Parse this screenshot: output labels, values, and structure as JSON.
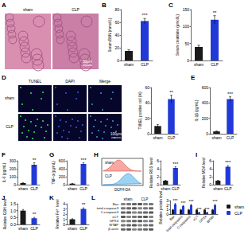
{
  "chart_data": [
    {
      "type": "bar",
      "title": "B",
      "categories": [
        "sham",
        "CLP"
      ],
      "values": [
        15,
        62
      ],
      "errors": [
        2,
        4
      ],
      "colors": [
        "#1a1a1a",
        "#2139d6"
      ],
      "ylabel": "Serum BUN (mmol/L)",
      "ylim": [
        0,
        80
      ],
      "yticks": [
        0,
        20,
        40,
        60,
        80
      ],
      "annotation": "***"
    },
    {
      "type": "bar",
      "title": "C",
      "categories": [
        "sham",
        "CLP"
      ],
      "values": [
        40,
        120
      ],
      "errors": [
        5,
        12
      ],
      "colors": [
        "#1a1a1a",
        "#2139d6"
      ],
      "ylabel": "Serum creatinine (μmol/L)",
      "ylim": [
        0,
        150
      ],
      "yticks": [
        0,
        50,
        100,
        150
      ],
      "annotation": "**"
    },
    {
      "type": "bar",
      "categories": [
        "sham",
        "CLP"
      ],
      "values": [
        10,
        45
      ],
      "errors": [
        2,
        5
      ],
      "colors": [
        "#1a1a1a",
        "#2139d6"
      ],
      "ylabel": "TUNEL positive cell (%)",
      "ylim": [
        0,
        60
      ],
      "yticks": [
        0,
        20,
        40,
        60
      ],
      "annotation": "**"
    },
    {
      "type": "bar",
      "title": "E",
      "categories": [
        "sham",
        "CLP"
      ],
      "values": [
        30,
        450
      ],
      "errors": [
        5,
        30
      ],
      "colors": [
        "#1a1a1a",
        "#2139d6"
      ],
      "ylabel": "IL-1β (pg/mL)",
      "ylim": [
        0,
        600
      ],
      "yticks": [
        0,
        200,
        400,
        600
      ],
      "annotation": "***"
    },
    {
      "type": "bar",
      "title": "F",
      "categories": [
        "sham",
        "CLP"
      ],
      "values": [
        20,
        250
      ],
      "errors": [
        4,
        25
      ],
      "colors": [
        "#1a1a1a",
        "#2139d6"
      ],
      "ylabel": "IL-6 (pg/mL)",
      "ylim": [
        0,
        300
      ],
      "yticks": [
        0,
        100,
        200,
        300
      ],
      "annotation": "**"
    },
    {
      "type": "bar",
      "title": "G",
      "categories": [
        "sham",
        "CLP"
      ],
      "values": [
        25,
        520
      ],
      "errors": [
        5,
        30
      ],
      "colors": [
        "#1a1a1a",
        "#2139d6"
      ],
      "ylabel": "TNF-α (pg/mL)",
      "ylim": [
        0,
        600
      ],
      "yticks": [
        0,
        200,
        400,
        600
      ],
      "annotation": "***"
    },
    {
      "type": "bar",
      "categories": [
        "sham",
        "CLP"
      ],
      "values": [
        1,
        4.2
      ],
      "errors": [
        0.1,
        0.3
      ],
      "colors": [
        "#1a1a1a",
        "#2139d6"
      ],
      "ylabel": "Relative ROS level",
      "ylim": [
        0,
        6
      ],
      "yticks": [
        0,
        2,
        4,
        6
      ],
      "annotation": "***"
    },
    {
      "type": "bar",
      "title": "I",
      "categories": [
        "sham",
        "CLP"
      ],
      "values": [
        1,
        4.5
      ],
      "errors": [
        0.1,
        0.3
      ],
      "colors": [
        "#1a1a1a",
        "#2139d6"
      ],
      "ylabel": "Relative MDA level",
      "ylim": [
        0,
        6
      ],
      "yticks": [
        0,
        2,
        4,
        6
      ],
      "annotation": "***"
    },
    {
      "type": "bar",
      "title": "J",
      "categories": [
        "sham",
        "CLP"
      ],
      "values": [
        1,
        0.45
      ],
      "errors": [
        0.08,
        0.06
      ],
      "colors": [
        "#1a1a1a",
        "#2139d6"
      ],
      "ylabel": "Relative GSH level",
      "ylim": [
        0,
        1.5
      ],
      "yticks": [
        {
          "value": 0,
          "label": "0.0"
        },
        {
          "value": 0.5,
          "label": "0.5"
        },
        {
          "value": 1,
          "label": "1.0"
        },
        {
          "value": 1.5,
          "label": "1.5"
        }
      ],
      "annotation": "**"
    },
    {
      "type": "bar",
      "title": "K",
      "categories": [
        "sham",
        "CLP"
      ],
      "values": [
        1,
        3
      ],
      "errors": [
        0.1,
        0.2
      ],
      "colors": [
        "#1a1a1a",
        "#2139d6"
      ],
      "ylabel": "Relative Fe²⁺ level",
      "ylim": [
        0,
        4
      ],
      "yticks": [
        0,
        1,
        2,
        3,
        4
      ],
      "annotation": "**"
    },
    {
      "type": "bar",
      "categories": [
        "Bax",
        "total-caspase3",
        "C-caspase3",
        "xCT",
        "GPX4",
        "WTAP"
      ],
      "series": [
        {
          "name": "sham",
          "color": "#1a1a1a",
          "values": [
            1,
            1,
            1,
            1,
            1,
            1
          ],
          "errors": [
            0.08,
            0.08,
            0.08,
            0.08,
            0.08,
            0.08
          ]
        },
        {
          "name": "CLP",
          "color": "#2139d6",
          "values": [
            2.2,
            1.8,
            2.0,
            0.4,
            0.4,
            2.0
          ],
          "errors": [
            0.15,
            0.12,
            0.15,
            0.05,
            0.05,
            0.15
          ]
        }
      ],
      "ylabel": "Relative protein level",
      "ylim": [
        0,
        3
      ],
      "yticks": [
        0,
        1,
        2,
        3
      ],
      "legend": "right",
      "annotations": [
        "***",
        "***",
        "***",
        "***",
        "***",
        "***"
      ]
    }
  ],
  "images": [
    {
      "title": "A",
      "labels": [
        "sham",
        "CLP"
      ],
      "scale_bar": "50μm"
    },
    {
      "title": "D",
      "columns": [
        "TUNEL",
        "DAPI",
        "Merge"
      ],
      "rows": [
        "sham",
        "CLP"
      ],
      "scale_bar": "100μm"
    },
    {
      "title": "H",
      "labels": [
        "sham",
        "CLP"
      ],
      "axis_label": "DCFH-DA"
    },
    {
      "title": "L",
      "columns": [
        "sham",
        "CLP"
      ],
      "rows": [
        "Bax",
        "total-caspase3",
        "C-caspase3",
        "xCT",
        "GPX4",
        "WTAP",
        "β-actin"
      ]
    }
  ]
}
